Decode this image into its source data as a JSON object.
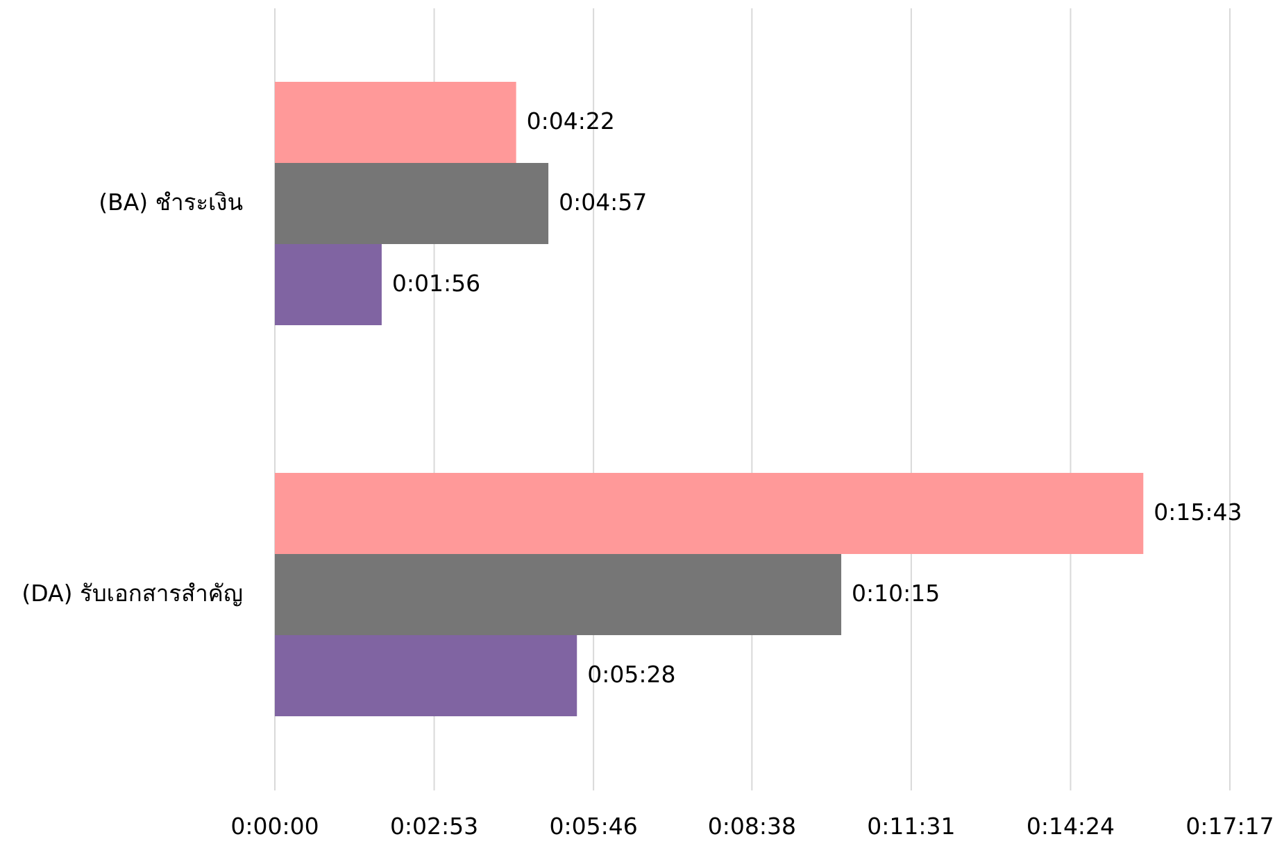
{
  "chart_data": {
    "type": "bar",
    "orientation": "horizontal",
    "title": "",
    "xlabel": "",
    "ylabel": "",
    "categories": [
      "(BA) ชำระเงิน",
      "(DA) รับเอกสารสำคัญ"
    ],
    "series": [
      {
        "color": "#ff9999",
        "values": [
          "0:04:22",
          "0:15:43"
        ]
      },
      {
        "color": "#767676",
        "values": [
          "0:04:57",
          "0:10:15"
        ]
      },
      {
        "color": "#8064a2",
        "values": [
          "0:01:56",
          "0:05:28"
        ]
      }
    ],
    "x_ticks": [
      "0:00:00",
      "0:02:53",
      "0:05:46",
      "0:08:38",
      "0:11:31",
      "0:14:24",
      "0:17:17"
    ],
    "xlim": [
      "0:00:00",
      "0:17:17"
    ],
    "grid": true,
    "legend": "none"
  }
}
